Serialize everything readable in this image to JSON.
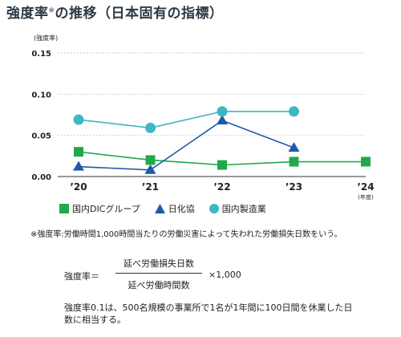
{
  "title": {
    "main": "強度率",
    "mark": "※",
    "rest": "の推移（日本固有の指標）"
  },
  "colors": {
    "dic": "#22a84a",
    "nikkakyo": "#1f5aa8",
    "manufacturing": "#3fb6c3",
    "grid": "#bbbbbb",
    "axis": "#333333"
  },
  "chart_data": {
    "type": "line",
    "ylabel": "(強度率)",
    "xunit": "(年度)",
    "categories": [
      "’20",
      "’21",
      "’22",
      "’23",
      "’24"
    ],
    "yticks": [
      "0.00",
      "0.05",
      "0.10",
      "0.15"
    ],
    "ylim": [
      0,
      0.15
    ],
    "grid": true,
    "legend_position": "bottom",
    "series": [
      {
        "name": "国内DICグループ",
        "marker": "square",
        "color": "#22a84a",
        "values": [
          0.03,
          0.02,
          0.014,
          0.018,
          0.018
        ]
      },
      {
        "name": "日化協",
        "marker": "triangle",
        "color": "#1f5aa8",
        "values": [
          0.012,
          0.008,
          0.068,
          0.035,
          null
        ]
      },
      {
        "name": "国内製造業",
        "marker": "circle",
        "color": "#3fb6c3",
        "values": [
          0.069,
          0.059,
          0.079,
          0.079,
          null
        ]
      }
    ]
  },
  "legend": [
    {
      "label": "国内DICグループ",
      "icon": "square-marker-icon"
    },
    {
      "label": "日化協",
      "icon": "triangle-marker-icon"
    },
    {
      "label": "国内製造業",
      "icon": "circle-marker-icon"
    }
  ],
  "note": "※強度率:労働時間1,000時間当たりの労働災害によって失われた労働損失日数をいう。",
  "formula": {
    "lhs": "強度率＝",
    "numerator": "延べ労働損失日数",
    "denominator": "延べ労働時間数",
    "multiplier": "×1,000"
  },
  "explanation": "強度率0.1は、500名規模の事業所で1名が1年間に100日間を休業した日数に相当する。"
}
